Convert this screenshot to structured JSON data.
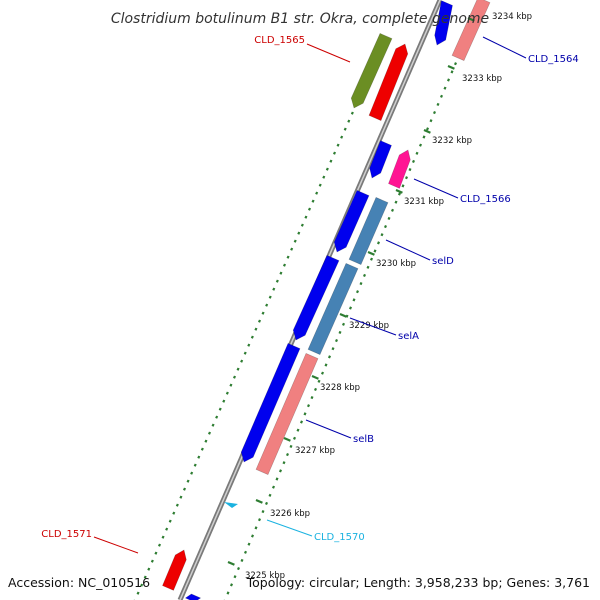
{
  "title": "Clostridium botulinum B1 str. Okra, complete genome",
  "accession": "Accession: NC_010516",
  "topology": "Topology: circular; Length: 3,958,233 bp; Genes: 3,761",
  "colors": {
    "backbone": "#8c8c8c",
    "tick_marks": "#2e7d32",
    "label_blue": "#0000aa",
    "label_red": "#cc0000",
    "label_cyan": "#1ab2e0",
    "gene_blue": "#0000ee",
    "gene_red": "#ee0000",
    "gene_olive": "#6b8e23",
    "gene_pink": "#f08080",
    "gene_magenta": "#ff1493",
    "gene_steelblue": "#4682b4",
    "gene_cyan": "#1ab2e0"
  },
  "ticks": [
    "3234 kbp",
    "3233 kbp",
    "3232 kbp",
    "3231 kbp",
    "3230 kbp",
    "3229 kbp",
    "3228 kbp",
    "3227 kbp",
    "3226 kbp",
    "3225 kbp"
  ],
  "genes": [
    {
      "label": "CLD_1564",
      "color_key": "label_blue"
    },
    {
      "label": "CLD_1565",
      "color_key": "label_red"
    },
    {
      "label": "CLD_1566",
      "color_key": "label_blue"
    },
    {
      "label": "selD",
      "color_key": "label_blue"
    },
    {
      "label": "selA",
      "color_key": "label_blue"
    },
    {
      "label": "selB",
      "color_key": "label_blue"
    },
    {
      "label": "CLD_1570",
      "color_key": "label_cyan"
    },
    {
      "label": "CLD_1571",
      "color_key": "label_red"
    }
  ]
}
